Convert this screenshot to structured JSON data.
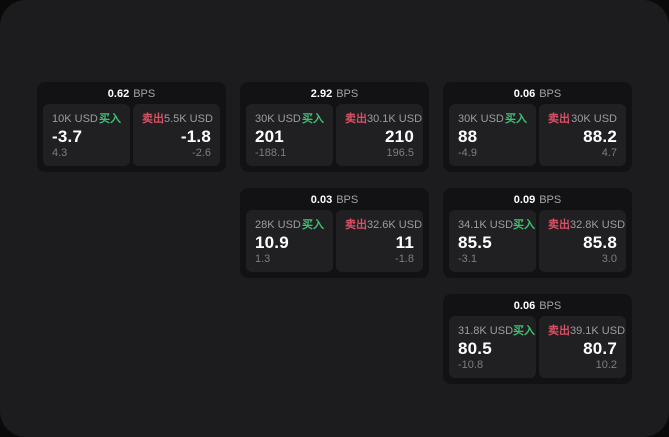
{
  "labels": {
    "bps_unit": "BPS",
    "buy": "买入",
    "sell": "卖出"
  },
  "colors": {
    "outside_background": "#0a0a0a",
    "page_background": "#1c1c1e",
    "card_background": "#121214",
    "panel_background": "#202023",
    "buy_green": "#3ec070",
    "sell_red": "#d94f63",
    "value_white": "#ffffff",
    "label_gray": "#9b9ba1",
    "muted_gray": "#7c7c82"
  },
  "cards": [
    {
      "position": "row1-col1",
      "bps": "0.62",
      "buy": {
        "notional": "10K USD",
        "value": "-3.7",
        "sub": "4.3"
      },
      "sell": {
        "notional": "5.5K USD",
        "value": "-1.8",
        "sub": "-2.6"
      }
    },
    {
      "position": "row1-col2",
      "bps": "2.92",
      "buy": {
        "notional": "30K USD",
        "value": "201",
        "sub": "-188.1"
      },
      "sell": {
        "notional": "30.1K USD",
        "value": "210",
        "sub": "196.5"
      }
    },
    {
      "position": "row1-col3",
      "bps": "0.06",
      "buy": {
        "notional": "30K USD",
        "value": "88",
        "sub": "-4.9"
      },
      "sell": {
        "notional": "30K USD",
        "value": "88.2",
        "sub": "4.7"
      }
    },
    {
      "position": "row2-col2",
      "bps": "0.03",
      "buy": {
        "notional": "28K USD",
        "value": "10.9",
        "sub": "1.3"
      },
      "sell": {
        "notional": "32.6K USD",
        "value": "11",
        "sub": "-1.8"
      }
    },
    {
      "position": "row2-col3",
      "bps": "0.09",
      "buy": {
        "notional": "34.1K USD",
        "value": "85.5",
        "sub": "-3.1"
      },
      "sell": {
        "notional": "32.8K USD",
        "value": "85.8",
        "sub": "3.0"
      }
    },
    {
      "position": "row3-col3",
      "bps": "0.06",
      "buy": {
        "notional": "31.8K USD",
        "value": "80.5",
        "sub": "-10.8"
      },
      "sell": {
        "notional": "39.1K USD",
        "value": "80.7",
        "sub": "10.2"
      }
    }
  ]
}
